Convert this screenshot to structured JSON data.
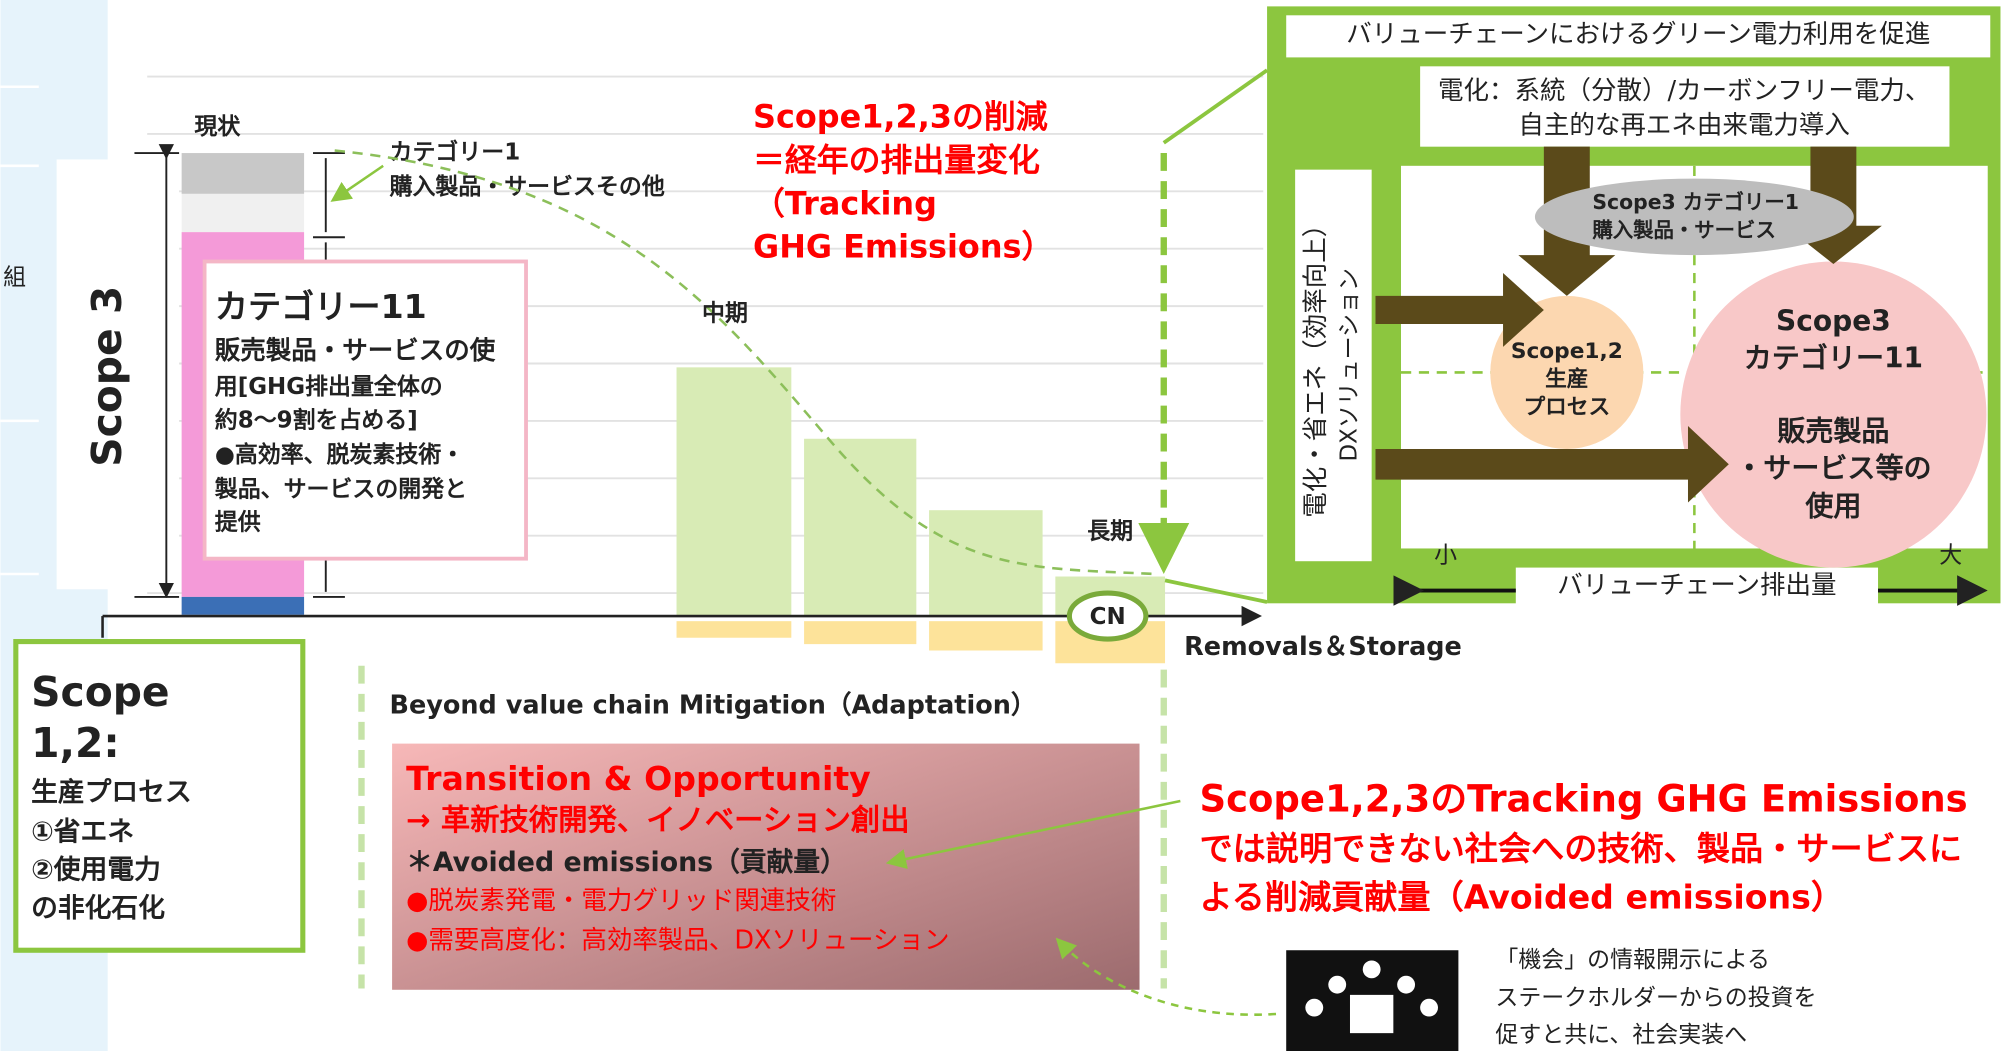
{
  "sidebar": {
    "label": "組"
  },
  "left_chart": {
    "current": "現状",
    "category1": [
      "カテゴリー1",
      "購入製品・サービスその他"
    ],
    "scope3": "Scope 3",
    "category11": {
      "title": "カテゴリー11",
      "lines": [
        "販売製品・サービスの使",
        "用[GHG排出量全体の",
        "約8～9割を占める]",
        "●高効率、脱炭素技術・",
        "製品、サービスの開発と",
        "提供"
      ]
    },
    "heading": [
      "Scope1,2,3の削減",
      "＝経年の排出量変化",
      "（Tracking",
      "GHG Emissions）"
    ],
    "mid": "中期",
    "long": "長期",
    "cn": "CN",
    "removals": "Removals＆Storage"
  },
  "scope12": {
    "lines": [
      "Scope",
      "1,2:",
      "生産プロセス",
      "①省エネ",
      "②使用電力",
      "の非化石化"
    ]
  },
  "beyond": "Beyond value chain Mitigation（Adaptation）",
  "transition": {
    "lines": [
      "Transition & Opportunity",
      "→ 革新技術開発、イノベーション創出",
      "＊Avoided emissions（貢献量）",
      "●脱炭素発電・電力グリッド関連技術",
      "●需要高度化：高効率製品、DXソリューション"
    ]
  },
  "avoided_note": [
    "Scope1,2,3のTracking GHG Emissions",
    "では説明できない社会への技術、製品・サービスに",
    "よる削減貢献量（Avoided emissions）"
  ],
  "disclosure": [
    "「機会」の情報開示による",
    "ステークホルダーからの投資を",
    "促すと共に、社会実装へ"
  ],
  "panel": {
    "title": "バリューチェーンにおけるグリーン電力利用を促進",
    "electrification": [
      "電化：系統（分散）/カーボンフリー電力、",
      "自主的な再エネ由来電力導入"
    ],
    "side": [
      "電化・省エネ（効率向上）",
      "DXソリューション"
    ],
    "cat1": [
      "Scope3 カテゴリー1",
      "購入製品・サービス"
    ],
    "scope12": [
      "Scope1,2",
      "生産",
      "プロセス"
    ],
    "cat11": [
      "Scope3",
      "カテゴリー11",
      "販売製品",
      "・サービス等の",
      "使用"
    ],
    "small": "小",
    "large": "大",
    "axis": "バリューチェーン排出量"
  }
}
